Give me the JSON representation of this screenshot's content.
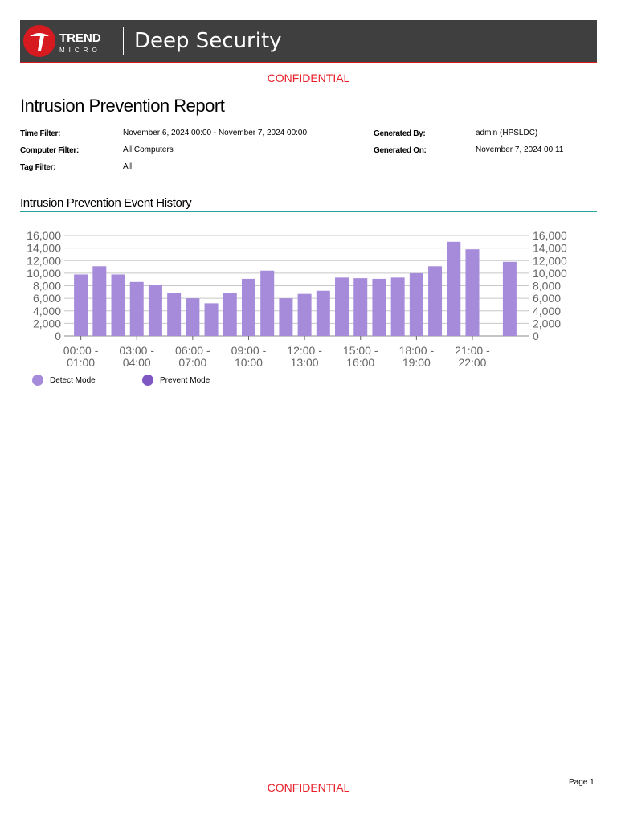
{
  "header": {
    "brand_top": "TREND",
    "brand_bottom": "MICRO",
    "product": "Deep Security"
  },
  "confidential_top": "CONFIDENTIAL",
  "title": "Intrusion Prevention Report",
  "meta": {
    "left": [
      [
        "Time Filter:",
        "November 6, 2024 00:00 - November 7, 2024 00:00"
      ],
      [
        "Computer Filter:",
        "All Computers"
      ],
      [
        "Tag Filter:",
        "All"
      ]
    ],
    "right": [
      [
        "Generated By:",
        "admin (HPSLDC)"
      ],
      [
        "Generated On:",
        "November 7, 2024 00:11"
      ]
    ]
  },
  "section_title": "Intrusion Prevention Event History",
  "chart_data": {
    "type": "bar",
    "stacked": true,
    "categories": [
      "00:00 - 01:00",
      null,
      null,
      "03:00 - 04:00",
      null,
      null,
      "06:00 - 07:00",
      null,
      null,
      "09:00 - 10:00",
      null,
      null,
      "12:00 - 13:00",
      null,
      null,
      "15:00 - 16:00",
      null,
      null,
      "18:00 - 19:00",
      null,
      null,
      "21:00 - 22:00",
      null,
      null
    ],
    "series": [
      {
        "name": "Detect Mode",
        "color": "#a68bdb",
        "values": [
          9800,
          11100,
          9800,
          8600,
          8100,
          6800,
          6000,
          5200,
          6800,
          9100,
          10400,
          6000,
          6700,
          7200,
          9300,
          9200,
          9100,
          9300,
          10000,
          11100,
          15000,
          13800,
          0,
          11800
        ]
      },
      {
        "name": "Prevent Mode",
        "color": "#7e57c2",
        "values": [
          0,
          0,
          0,
          0,
          0,
          0,
          0,
          0,
          0,
          0,
          0,
          0,
          0,
          0,
          0,
          0,
          0,
          0,
          0,
          0,
          0,
          0,
          0,
          0
        ]
      }
    ],
    "ylim": [
      0,
      16000
    ],
    "yticks": [
      0,
      {
        "value": 2000,
        "label": "2,000"
      },
      {
        "value": 4000,
        "label": "4,000"
      },
      {
        "value": 6000,
        "label": "6,000"
      },
      {
        "value": 8000,
        "label": "8,000"
      },
      {
        "value": 10000,
        "label": "10,000"
      },
      {
        "value": 12000,
        "label": "12,000"
      },
      {
        "value": 14000,
        "label": "14,000"
      },
      {
        "value": 16000,
        "label": "16,000"
      }
    ],
    "y2lim": [
      0,
      16000
    ],
    "y2ticks": [
      0,
      {
        "value": 2000,
        "label": "2,000"
      },
      {
        "value": 4000,
        "label": "4,000"
      },
      {
        "value": 6000,
        "label": "6,000"
      },
      {
        "value": 8000,
        "label": "8,000"
      },
      {
        "value": 10000,
        "label": "10,000"
      },
      {
        "value": 12000,
        "label": "12,000"
      },
      {
        "value": 14000,
        "label": "14,000"
      },
      {
        "value": 16000,
        "label": "16,000"
      }
    ],
    "grid": true,
    "legend": "bottom-left"
  },
  "footer": {
    "confidential": "CONFIDENTIAL",
    "page": "Page 1"
  }
}
